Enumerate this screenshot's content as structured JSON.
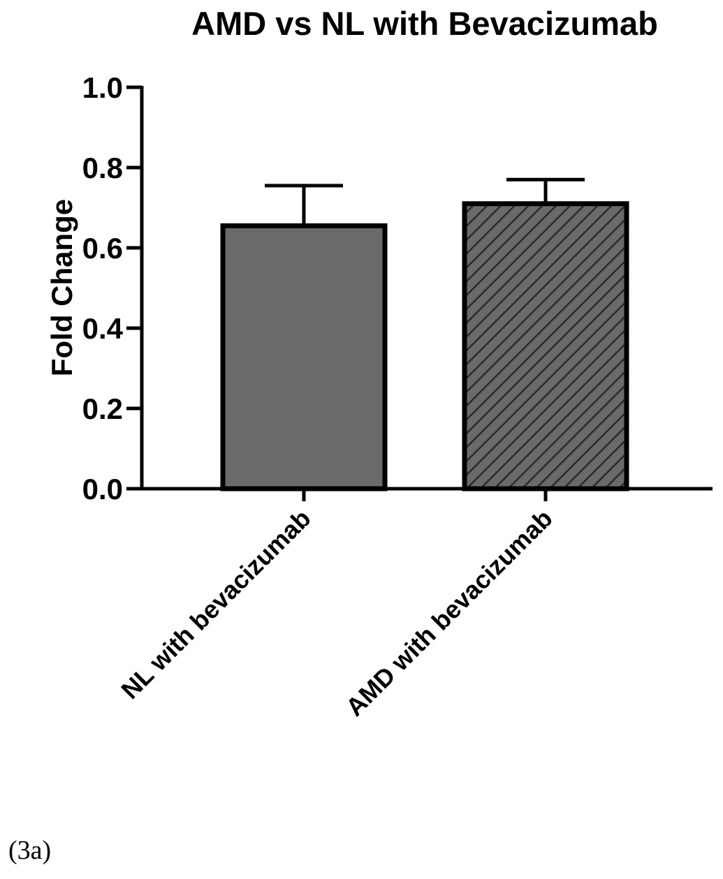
{
  "chart_data": {
    "type": "bar",
    "title": "AMD vs NL with Bevacizumab",
    "xlabel": "",
    "ylabel": "Fold  Change",
    "ylim": [
      0,
      1.0
    ],
    "yticks": [
      0.0,
      0.2,
      0.4,
      0.6,
      0.8,
      1.0
    ],
    "ytick_labels": [
      "0.0",
      "0.2",
      "0.4",
      "0.6",
      "0.8",
      "1.0"
    ],
    "categories": [
      "NL with bevacizumab",
      "AMD with bevacizumab"
    ],
    "values": [
      0.655,
      0.71
    ],
    "errors": [
      0.1,
      0.06
    ],
    "fills": [
      "solid",
      "hatched"
    ],
    "colors": {
      "bar": "#6a6a6a",
      "outline": "#000000",
      "hatch": "#2a2a2a"
    },
    "grid": false,
    "legend": "none"
  },
  "panel_label": "(3a)"
}
